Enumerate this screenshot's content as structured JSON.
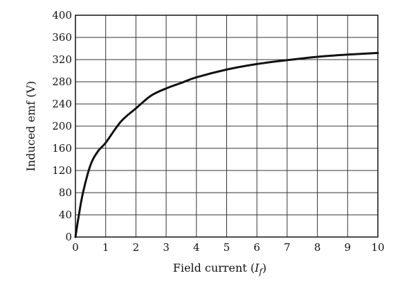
{
  "chart_data": {
    "type": "line",
    "xlabel": "Field current (I_f)",
    "xlabel_main": "Field current (",
    "xlabel_var": "I",
    "xlabel_sub": "f",
    "xlabel_close": ")",
    "ylabel": "Induced emf (V)",
    "xlim": [
      0,
      10
    ],
    "ylim": [
      0,
      400
    ],
    "x_ticks": [
      0,
      1,
      2,
      3,
      4,
      5,
      6,
      7,
      8,
      9,
      10
    ],
    "y_ticks": [
      0,
      40,
      80,
      120,
      160,
      200,
      240,
      280,
      320,
      360,
      400
    ],
    "grid": true,
    "series": [
      {
        "x": [
          0,
          0.1,
          0.25,
          0.5,
          0.75,
          1,
          1.5,
          2,
          2.5,
          3,
          3.5,
          4,
          5,
          6,
          7,
          8,
          9,
          10
        ],
        "y": [
          0,
          35,
          80,
          130,
          155,
          170,
          208,
          232,
          255,
          268,
          278,
          288,
          302,
          312,
          319,
          325,
          329,
          332
        ]
      }
    ]
  }
}
